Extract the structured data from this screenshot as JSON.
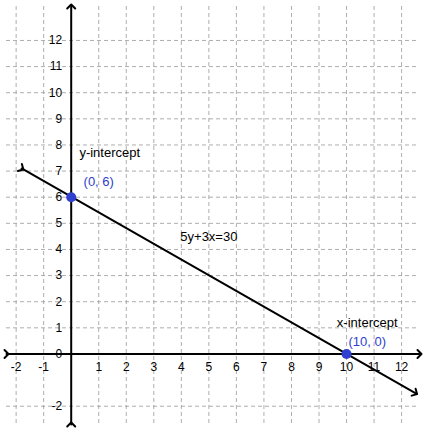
{
  "chart_data": {
    "type": "line",
    "x": [
      -1.8,
      12.5
    ],
    "values": [
      7.1,
      -1.5
    ],
    "color": "#000000",
    "marker": "arrow",
    "xlim": [
      -2.35,
      12.65
    ],
    "ylim": [
      -2.7,
      13.3
    ],
    "xticks": [
      -2,
      -1,
      1,
      2,
      3,
      4,
      5,
      6,
      7,
      8,
      9,
      10,
      11,
      12
    ],
    "yticks": [
      -2,
      0,
      1,
      2,
      3,
      4,
      5,
      6,
      7,
      8,
      9,
      10,
      11,
      12
    ],
    "grid": true,
    "points": [
      {
        "x": 0,
        "y": 6,
        "color": "#2f3fd0"
      },
      {
        "x": 10,
        "y": 0,
        "color": "#2f3fd0"
      }
    ],
    "annotations": [
      {
        "text": "y-intercept",
        "x": 1.4,
        "y": 7.7,
        "color": "#000000"
      },
      {
        "text": "(0, 6)",
        "x": 1.0,
        "y": 6.6,
        "color": "#2f3fd0"
      },
      {
        "text": "5y+3x=30",
        "x": 5.0,
        "y": 4.5,
        "color": "#000000"
      },
      {
        "text": "x-intercept",
        "x": 10.75,
        "y": 1.2,
        "color": "#000000"
      },
      {
        "text": "(10, 0)",
        "x": 10.75,
        "y": 0.45,
        "color": "#2f3fd0"
      }
    ]
  }
}
